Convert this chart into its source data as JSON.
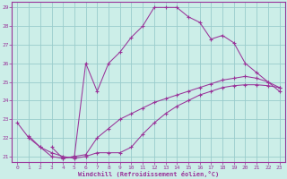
{
  "title": "",
  "xlabel": "Windchill (Refroidissement éolien,°C)",
  "xlim": [
    -0.5,
    23.5
  ],
  "ylim": [
    20.7,
    29.3
  ],
  "xticks": [
    0,
    1,
    2,
    3,
    4,
    5,
    6,
    7,
    8,
    9,
    10,
    11,
    12,
    13,
    14,
    15,
    16,
    17,
    18,
    19,
    20,
    21,
    22,
    23
  ],
  "yticks": [
    21,
    22,
    23,
    24,
    25,
    26,
    27,
    28,
    29
  ],
  "background_color": "#cceee8",
  "grid_color": "#99cccc",
  "line_color": "#993399",
  "lines": [
    {
      "x": [
        0,
        1,
        2,
        3,
        4,
        5,
        6,
        7,
        8,
        9,
        10,
        11,
        12,
        13,
        14,
        15,
        16,
        17,
        18,
        19,
        20,
        21,
        22,
        23
      ],
      "y": [
        22.8,
        22.0,
        21.5,
        21.0,
        20.9,
        21.0,
        21.1,
        22.0,
        22.5,
        23.0,
        23.3,
        23.6,
        23.9,
        24.1,
        24.3,
        24.5,
        24.7,
        24.9,
        25.1,
        25.2,
        25.3,
        25.2,
        25.0,
        24.7
      ]
    },
    {
      "x": [
        1,
        2,
        3,
        4,
        5,
        6,
        7,
        8,
        9,
        10,
        11,
        12,
        13,
        14,
        15,
        16,
        17,
        18,
        19,
        20,
        21,
        22,
        23
      ],
      "y": [
        22.1,
        21.5,
        21.2,
        21.0,
        20.9,
        21.0,
        21.2,
        21.2,
        21.2,
        21.5,
        22.2,
        22.8,
        23.3,
        23.7,
        24.0,
        24.3,
        24.5,
        24.7,
        24.8,
        24.85,
        24.85,
        24.8,
        24.7
      ]
    },
    {
      "x": [
        3,
        4,
        5,
        6,
        7,
        8,
        9,
        10,
        11,
        12,
        13,
        14,
        15,
        16,
        17,
        18,
        19,
        20,
        21,
        22,
        23
      ],
      "y": [
        21.5,
        20.9,
        21.0,
        26.0,
        24.5,
        26.0,
        26.6,
        27.4,
        28.0,
        29.0,
        29.0,
        29.0,
        28.5,
        28.2,
        27.3,
        27.5,
        27.1,
        26.0,
        25.5,
        25.0,
        24.5
      ]
    }
  ]
}
